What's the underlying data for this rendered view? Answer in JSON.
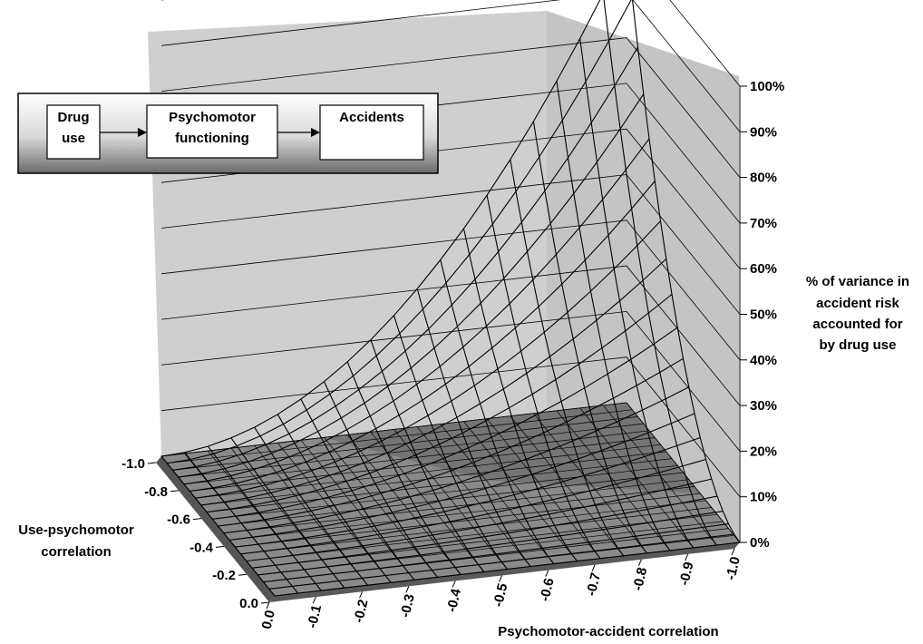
{
  "chart_data": {
    "type": "surface",
    "title": "",
    "formula": "z = (x*y)^2",
    "x_axis": {
      "label": "Psychomotor-accident correlation",
      "values": [
        0.0,
        -0.05,
        -0.1,
        -0.15,
        -0.2,
        -0.25,
        -0.3,
        -0.35,
        -0.4,
        -0.45,
        -0.5,
        -0.55,
        -0.6,
        -0.65,
        -0.7,
        -0.75,
        -0.8,
        -0.85,
        -0.9,
        -0.95,
        -1.0
      ],
      "tick_labels": [
        "0.0",
        "-0.1",
        "-0.2",
        "-0.3",
        "-0.4",
        "-0.5",
        "-0.6",
        "-0.7",
        "-0.8",
        "-0.9",
        "-1.0"
      ]
    },
    "y_axis": {
      "label_lines": [
        "Use-psychomotor",
        "correlation"
      ],
      "values": [
        0.0,
        -0.05,
        -0.1,
        -0.15,
        -0.2,
        -0.25,
        -0.3,
        -0.35,
        -0.4,
        -0.45,
        -0.5,
        -0.55,
        -0.6,
        -0.65,
        -0.7,
        -0.75,
        -0.8,
        -0.85,
        -0.9,
        -0.95,
        -1.0
      ],
      "tick_labels": [
        "0.0",
        "-0.2",
        "-0.4",
        "-0.6",
        "-0.8",
        "-1.0"
      ]
    },
    "z_axis": {
      "label_lines": [
        "% of variance in",
        "accident risk",
        "accounted for",
        "by drug use"
      ],
      "range": [
        0,
        100
      ],
      "tick_labels": [
        "0%",
        "10%",
        "20%",
        "30%",
        "40%",
        "50%",
        "60%",
        "70%",
        "80%",
        "90%",
        "100%"
      ]
    },
    "corner_values": [
      {
        "x": 0.0,
        "y": 0.0,
        "z_percent": 0
      },
      {
        "x": -1.0,
        "y": 0.0,
        "z_percent": 0
      },
      {
        "x": 0.0,
        "y": -1.0,
        "z_percent": 0
      },
      {
        "x": -1.0,
        "y": -1.0,
        "z_percent": 100
      },
      {
        "x": -0.5,
        "y": -1.0,
        "z_percent": 25
      },
      {
        "x": -1.0,
        "y": -0.5,
        "z_percent": 25
      }
    ],
    "grid": true,
    "inset_diagram": {
      "boxes": [
        {
          "lines": [
            "Drug",
            "use"
          ]
        },
        {
          "lines": [
            "Psychomotor",
            "functioning"
          ]
        },
        {
          "lines": [
            "Accidents"
          ]
        }
      ],
      "arrows": [
        "Drug use -> Psychomotor functioning",
        "Psychomotor functioning -> Accidents"
      ]
    },
    "colors": {
      "wall": "#c8c8c8",
      "floor": "#8a8a8a",
      "mesh": "#000000",
      "shadow": "#6e6e6e"
    }
  }
}
